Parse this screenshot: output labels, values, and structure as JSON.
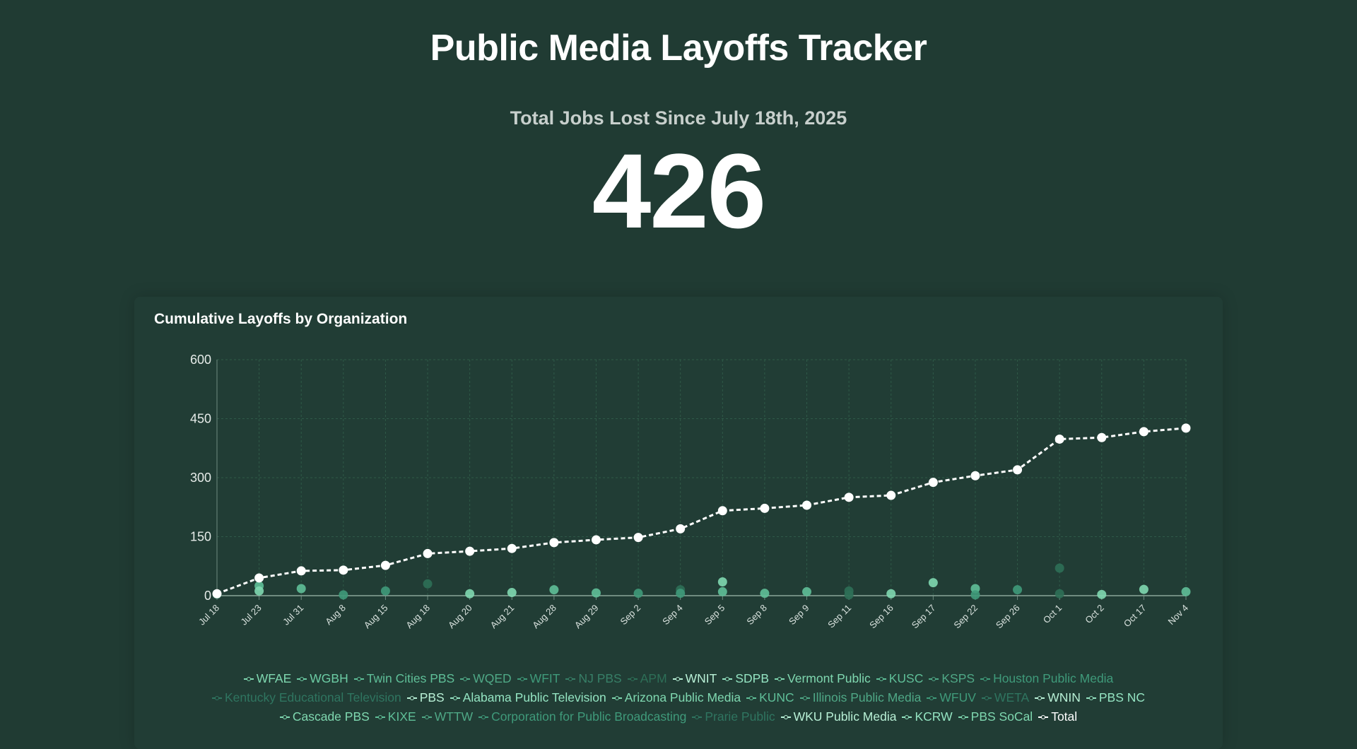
{
  "header": {
    "title": "Public Media Layoffs Tracker",
    "subtitle": "Total Jobs Lost Since July 18th, 2025",
    "total": "426"
  },
  "colors": {
    "background": "#203b33",
    "grid": "#2f5a48",
    "total_line": "#ffffff",
    "legend_colors": [
      "#7fd8b0",
      "#5fbf98",
      "#3f9a7a",
      "#2d6f57"
    ]
  },
  "chart_data": {
    "type": "line",
    "title": "Cumulative Layoffs by Organization",
    "xlabel": "",
    "ylabel": "",
    "ylim": [
      0,
      600
    ],
    "yticks": [
      0,
      150,
      300,
      450,
      600
    ],
    "grid": true,
    "legend_placement": "bottom",
    "categories": [
      "Jul 18",
      "Jul 23",
      "Jul 31",
      "Aug 8",
      "Aug 15",
      "Aug 18",
      "Aug 20",
      "Aug 21",
      "Aug 28",
      "Aug 29",
      "Sep 2",
      "Sep 4",
      "Sep 5",
      "Sep 8",
      "Sep 9",
      "Sep 11",
      "Sep 16",
      "Sep 17",
      "Sep 22",
      "Sep 26",
      "Oct 1",
      "Oct 2",
      "Oct 17",
      "Nov 4"
    ],
    "series": [
      {
        "name": "Total",
        "values": [
          5,
          45,
          63,
          65,
          77,
          107,
          113,
          120,
          135,
          142,
          148,
          170,
          216,
          222,
          230,
          250,
          255,
          288,
          305,
          320,
          398,
          402,
          417,
          426
        ]
      }
    ],
    "org_points": [
      {
        "x": "Jul 18",
        "y": 3,
        "c": 3
      },
      {
        "x": "Jul 23",
        "y": 25,
        "c": 1
      },
      {
        "x": "Jul 23",
        "y": 12,
        "c": 0
      },
      {
        "x": "Jul 31",
        "y": 18,
        "c": 1
      },
      {
        "x": "Aug 8",
        "y": 2,
        "c": 2
      },
      {
        "x": "Aug 15",
        "y": 12,
        "c": 2
      },
      {
        "x": "Aug 18",
        "y": 30,
        "c": 3
      },
      {
        "x": "Aug 20",
        "y": 5,
        "c": 0
      },
      {
        "x": "Aug 21",
        "y": 8,
        "c": 0
      },
      {
        "x": "Aug 28",
        "y": 15,
        "c": 1
      },
      {
        "x": "Aug 29",
        "y": 7,
        "c": 1
      },
      {
        "x": "Sep 2",
        "y": 6,
        "c": 2
      },
      {
        "x": "Sep 4",
        "y": 15,
        "c": 3
      },
      {
        "x": "Sep 4",
        "y": 6,
        "c": 2
      },
      {
        "x": "Sep 5",
        "y": 35,
        "c": 0
      },
      {
        "x": "Sep 5",
        "y": 10,
        "c": 1
      },
      {
        "x": "Sep 8",
        "y": 6,
        "c": 1
      },
      {
        "x": "Sep 9",
        "y": 10,
        "c": 1
      },
      {
        "x": "Sep 11",
        "y": 12,
        "c": 3
      },
      {
        "x": "Sep 11",
        "y": 2,
        "c": 3
      },
      {
        "x": "Sep 16",
        "y": 5,
        "c": 0
      },
      {
        "x": "Sep 17",
        "y": 33,
        "c": 0
      },
      {
        "x": "Sep 22",
        "y": 18,
        "c": 1
      },
      {
        "x": "Sep 22",
        "y": 2,
        "c": 2
      },
      {
        "x": "Sep 26",
        "y": 15,
        "c": 2
      },
      {
        "x": "Oct 1",
        "y": 70,
        "c": 3
      },
      {
        "x": "Oct 1",
        "y": 5,
        "c": 3
      },
      {
        "x": "Oct 2",
        "y": 3,
        "c": 0
      },
      {
        "x": "Oct 17",
        "y": 16,
        "c": 0
      },
      {
        "x": "Nov 4",
        "y": 10,
        "c": 1
      }
    ]
  },
  "legend": [
    {
      "label": "WFAE",
      "color": "#7fd8b0"
    },
    {
      "label": "WGBH",
      "color": "#6ccca4"
    },
    {
      "label": "Twin Cities PBS",
      "color": "#5fbf98"
    },
    {
      "label": "WQED",
      "color": "#4fa886"
    },
    {
      "label": "WFIT",
      "color": "#3f9a7a"
    },
    {
      "label": "NJ PBS",
      "color": "#377f67"
    },
    {
      "label": "APM",
      "color": "#2d6f57"
    },
    {
      "label": "WNIT",
      "color": "#b8f0d6"
    },
    {
      "label": "SDPB",
      "color": "#94e4c2"
    },
    {
      "label": "Vermont Public",
      "color": "#7fd8b0"
    },
    {
      "label": "KUSC",
      "color": "#5fbf98"
    },
    {
      "label": "KSPS",
      "color": "#4fa886"
    },
    {
      "label": "Houston Public Media",
      "color": "#3f9a7a"
    },
    {
      "label": "Kentucky Educational Television",
      "color": "#2f7560"
    },
    {
      "label": "PBS",
      "color": "#b8f0d6"
    },
    {
      "label": "Alabama Public Television",
      "color": "#94e4c2"
    },
    {
      "label": "Arizona Public Media",
      "color": "#7fd8b0"
    },
    {
      "label": "KUNC",
      "color": "#5fbf98"
    },
    {
      "label": "Illinois Public Media",
      "color": "#4fa886"
    },
    {
      "label": "WFUV",
      "color": "#3f9a7a"
    },
    {
      "label": "WETA",
      "color": "#2f7560"
    },
    {
      "label": "WNIN",
      "color": "#b8f0d6"
    },
    {
      "label": "PBS NC",
      "color": "#94e4c2"
    },
    {
      "label": "Cascade PBS",
      "color": "#7fd8b0"
    },
    {
      "label": "KIXE",
      "color": "#5fbf98"
    },
    {
      "label": "WTTW",
      "color": "#4fa886"
    },
    {
      "label": "Corporation for Public Broadcasting",
      "color": "#3f9a7a"
    },
    {
      "label": "Prarie Public",
      "color": "#2f7560"
    },
    {
      "label": "WKU Public Media",
      "color": "#b8f0d6"
    },
    {
      "label": "KCRW",
      "color": "#94e4c2"
    },
    {
      "label": "PBS SoCal",
      "color": "#7fd8b0"
    },
    {
      "label": "Total",
      "color": "#ffffff"
    }
  ]
}
